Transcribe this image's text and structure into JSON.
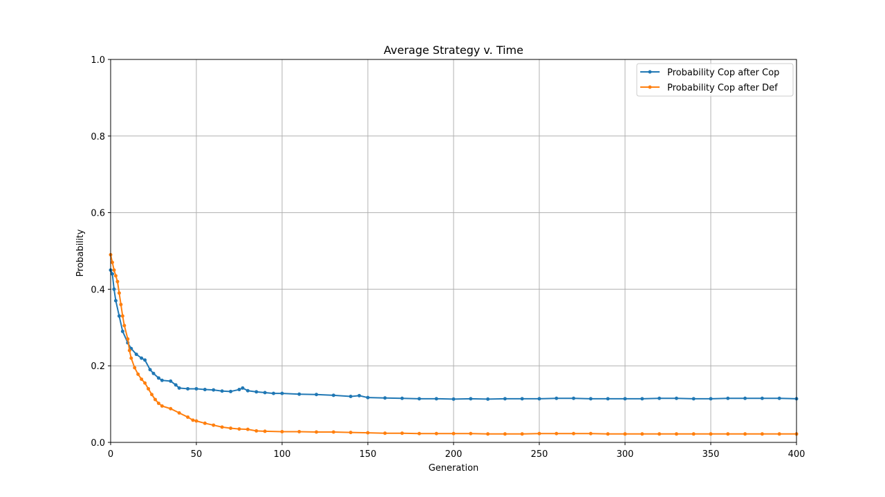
{
  "chart_data": {
    "type": "line",
    "title": "Average Strategy v. Time",
    "xlabel": "Generation",
    "ylabel": "Probability",
    "xlim": [
      0,
      400
    ],
    "ylim": [
      0,
      1.0
    ],
    "x_ticks": [
      "0",
      "50",
      "100",
      "150",
      "200",
      "250",
      "300",
      "350",
      "400"
    ],
    "y_ticks": [
      "0.0",
      "0.2",
      "0.4",
      "0.6",
      "0.8",
      "1.0"
    ],
    "grid": true,
    "legend_position": "top-right",
    "series": [
      {
        "name": "Probability Cop after Cop",
        "color": "#1f77b4",
        "points": [
          [
            0,
            0.45
          ],
          [
            1,
            0.44
          ],
          [
            2,
            0.4
          ],
          [
            3,
            0.37
          ],
          [
            5,
            0.33
          ],
          [
            7,
            0.29
          ],
          [
            10,
            0.26
          ],
          [
            12,
            0.245
          ],
          [
            15,
            0.23
          ],
          [
            18,
            0.22
          ],
          [
            20,
            0.215
          ],
          [
            23,
            0.19
          ],
          [
            25,
            0.18
          ],
          [
            28,
            0.168
          ],
          [
            30,
            0.162
          ],
          [
            35,
            0.16
          ],
          [
            38,
            0.15
          ],
          [
            40,
            0.142
          ],
          [
            45,
            0.14
          ],
          [
            50,
            0.14
          ],
          [
            55,
            0.138
          ],
          [
            60,
            0.137
          ],
          [
            65,
            0.134
          ],
          [
            70,
            0.133
          ],
          [
            75,
            0.138
          ],
          [
            77,
            0.142
          ],
          [
            80,
            0.135
          ],
          [
            85,
            0.132
          ],
          [
            90,
            0.13
          ],
          [
            95,
            0.128
          ],
          [
            100,
            0.128
          ],
          [
            110,
            0.126
          ],
          [
            120,
            0.125
          ],
          [
            130,
            0.123
          ],
          [
            140,
            0.12
          ],
          [
            145,
            0.122
          ],
          [
            150,
            0.117
          ],
          [
            160,
            0.116
          ],
          [
            170,
            0.115
          ],
          [
            180,
            0.114
          ],
          [
            190,
            0.114
          ],
          [
            200,
            0.113
          ],
          [
            210,
            0.114
          ],
          [
            220,
            0.113
          ],
          [
            230,
            0.114
          ],
          [
            240,
            0.114
          ],
          [
            250,
            0.114
          ],
          [
            260,
            0.115
          ],
          [
            270,
            0.115
          ],
          [
            280,
            0.114
          ],
          [
            290,
            0.114
          ],
          [
            300,
            0.114
          ],
          [
            310,
            0.114
          ],
          [
            320,
            0.115
          ],
          [
            330,
            0.115
          ],
          [
            340,
            0.114
          ],
          [
            350,
            0.114
          ],
          [
            360,
            0.115
          ],
          [
            370,
            0.115
          ],
          [
            380,
            0.115
          ],
          [
            390,
            0.115
          ],
          [
            400,
            0.114
          ]
        ]
      },
      {
        "name": "Probability Cop after Def",
        "color": "#ff7f0e",
        "points": [
          [
            0,
            0.49
          ],
          [
            1,
            0.47
          ],
          [
            2,
            0.45
          ],
          [
            3,
            0.435
          ],
          [
            4,
            0.42
          ],
          [
            5,
            0.39
          ],
          [
            6,
            0.36
          ],
          [
            7,
            0.33
          ],
          [
            8,
            0.305
          ],
          [
            10,
            0.27
          ],
          [
            11,
            0.24
          ],
          [
            12,
            0.22
          ],
          [
            14,
            0.195
          ],
          [
            16,
            0.178
          ],
          [
            18,
            0.165
          ],
          [
            20,
            0.155
          ],
          [
            22,
            0.14
          ],
          [
            24,
            0.125
          ],
          [
            26,
            0.112
          ],
          [
            28,
            0.102
          ],
          [
            30,
            0.095
          ],
          [
            35,
            0.088
          ],
          [
            40,
            0.077
          ],
          [
            45,
            0.066
          ],
          [
            48,
            0.058
          ],
          [
            50,
            0.056
          ],
          [
            55,
            0.05
          ],
          [
            60,
            0.045
          ],
          [
            65,
            0.04
          ],
          [
            70,
            0.037
          ],
          [
            75,
            0.035
          ],
          [
            80,
            0.034
          ],
          [
            85,
            0.03
          ],
          [
            90,
            0.029
          ],
          [
            100,
            0.028
          ],
          [
            110,
            0.028
          ],
          [
            120,
            0.027
          ],
          [
            130,
            0.027
          ],
          [
            140,
            0.026
          ],
          [
            150,
            0.025
          ],
          [
            160,
            0.024
          ],
          [
            170,
            0.024
          ],
          [
            180,
            0.023
          ],
          [
            190,
            0.023
          ],
          [
            200,
            0.023
          ],
          [
            210,
            0.023
          ],
          [
            220,
            0.022
          ],
          [
            230,
            0.022
          ],
          [
            240,
            0.022
          ],
          [
            250,
            0.023
          ],
          [
            260,
            0.023
          ],
          [
            270,
            0.023
          ],
          [
            280,
            0.023
          ],
          [
            290,
            0.022
          ],
          [
            300,
            0.022
          ],
          [
            310,
            0.022
          ],
          [
            320,
            0.022
          ],
          [
            330,
            0.022
          ],
          [
            340,
            0.022
          ],
          [
            350,
            0.022
          ],
          [
            360,
            0.022
          ],
          [
            370,
            0.022
          ],
          [
            380,
            0.022
          ],
          [
            390,
            0.022
          ],
          [
            400,
            0.022
          ]
        ]
      }
    ]
  }
}
